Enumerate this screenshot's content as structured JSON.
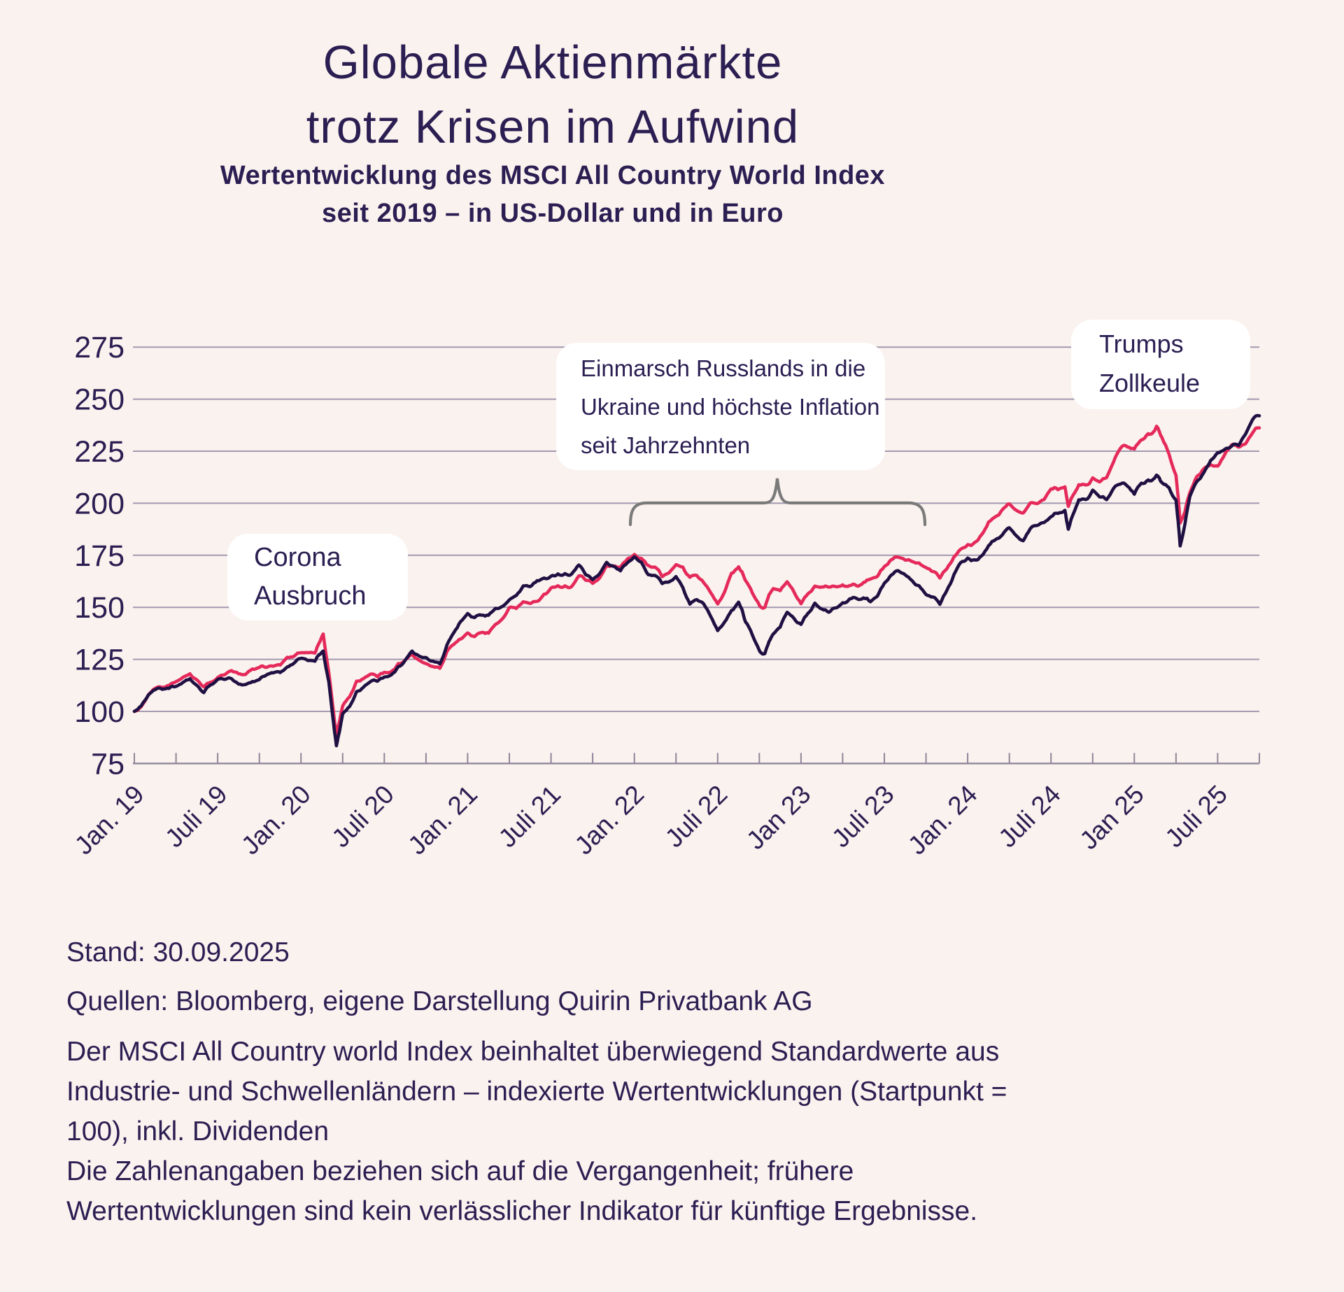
{
  "page": {
    "background_color": "#faf2ee",
    "ink_color": "#2b1e52"
  },
  "title": {
    "line1": "Globale Aktienmärkte",
    "line2": "trotz Krisen im Aufwind"
  },
  "subtitle": {
    "line1": "Wertentwicklung des MSCI All Country World Index",
    "line2": "seit 2019 – in US-Dollar und in Euro"
  },
  "annotations": {
    "corona": {
      "lines": [
        "Corona",
        "Ausbruch"
      ]
    },
    "ukraine": {
      "lines": [
        "Einmarsch Russlands in die",
        "Ukraine und höchste Inflation",
        "seit Jahrzehnten"
      ]
    },
    "trump": {
      "lines": [
        "Trumps",
        "Zollkeule"
      ]
    }
  },
  "footer": {
    "stand": "Stand: 30.09.2025",
    "quellen": "Quellen: Bloomberg, eigene Darstellung Quirin Privatbank AG",
    "note_lines": [
      "Der MSCI All Country world Index beinhaltet überwiegend Standardwerte aus",
      "Industrie- und Schwellenländern – indexierte Wertentwicklungen (Startpunkt =",
      "100), inkl. Dividenden",
      "Die Zahlenangaben beziehen sich auf die Vergangenheit; frühere",
      "Wertentwicklungen sind kein verlässlicher Indikator für künftige Ergebnisse."
    ]
  },
  "chart_data": {
    "type": "line",
    "title": "Wertentwicklung des MSCI All Country World Index seit 2019 – in US-Dollar und in Euro",
    "xlabel": "",
    "ylabel": "indexierte Wertentwicklung (Startpunkt = 100)",
    "x_unit": "Monate seit Januar 2019",
    "x_range_months": [
      0,
      81
    ],
    "x_tick_labels": [
      "Jan. 19",
      "Juli 19",
      "Jan. 20",
      "Juli 20",
      "Jan. 21",
      "Juli 21",
      "Jan. 22",
      "Juli 22",
      "Jan 23",
      "Juli 23",
      "Jan. 24",
      "Juli 24",
      "Jan 25",
      "Juli 25"
    ],
    "x_tick_label_interval_months": 6,
    "x_minor_tick_interval_months": 3,
    "y_ticks": [
      275,
      250,
      225,
      200,
      175,
      150,
      125,
      100,
      75
    ],
    "ylim": [
      75,
      287
    ],
    "grid": true,
    "grid_color": "#a29ab0",
    "axis_color": "#8d8699",
    "brace_color": "#7a7a7a",
    "legend_position": "none",
    "series": [
      {
        "name": "MSCI All Country World Index in Euro",
        "currency": "EUR",
        "color": "#e52a5b",
        "column": 2
      },
      {
        "name": "MSCI All Country World Index in US-Dollar",
        "currency": "USD",
        "color": "#1e1042",
        "column": 1
      }
    ],
    "points_t_usd_eur": [
      [
        0,
        100,
        100
      ],
      [
        1,
        107.8,
        107.9
      ],
      [
        2,
        110.6,
        111.5
      ],
      [
        3,
        112.0,
        114.3
      ],
      [
        4,
        115.7,
        118.1
      ],
      [
        5,
        109.0,
        111.8
      ],
      [
        6,
        115.4,
        116.3
      ],
      [
        7,
        115.7,
        119.6
      ],
      [
        8,
        112.9,
        117.7
      ],
      [
        9,
        115.3,
        121.1
      ],
      [
        10,
        118.5,
        121.7
      ],
      [
        11,
        121.3,
        126.0
      ],
      [
        12,
        125.5,
        128.2
      ],
      [
        13,
        124.1,
        128.0
      ],
      [
        13.6,
        129.0,
        137.2
      ],
      [
        14,
        114.4,
        118.9
      ],
      [
        14.55,
        83.5,
        88.5
      ],
      [
        15,
        98.8,
        102.6
      ],
      [
        16,
        109.5,
        114.5
      ],
      [
        17,
        114.3,
        117.9
      ],
      [
        18,
        116.5,
        118.8
      ],
      [
        19,
        121.5,
        123.0
      ],
      [
        20,
        129.0,
        127.5
      ],
      [
        21,
        125.9,
        123.0
      ],
      [
        22,
        122.8,
        120.7
      ],
      [
        23,
        137.8,
        132.2
      ],
      [
        24,
        147.0,
        137.7
      ],
      [
        25,
        146.2,
        137.9
      ],
      [
        26,
        149.5,
        141.8
      ],
      [
        27,
        153.6,
        149.9
      ],
      [
        28,
        160.3,
        152.7
      ],
      [
        29,
        162.8,
        152.9
      ],
      [
        30,
        165.0,
        159.3
      ],
      [
        31,
        166.2,
        160.3
      ],
      [
        32,
        170.3,
        165.1
      ],
      [
        33,
        163.3,
        161.5
      ],
      [
        34,
        171.6,
        170.0
      ],
      [
        35,
        167.5,
        169.1
      ],
      [
        36,
        174.3,
        175.4
      ],
      [
        37,
        165.7,
        170.1
      ],
      [
        38,
        161.4,
        164.7
      ],
      [
        39,
        164.8,
        170.5
      ],
      [
        40,
        151.5,
        164.4
      ],
      [
        41,
        151.6,
        161.8
      ],
      [
        42,
        138.8,
        151.6
      ],
      [
        43,
        148.5,
        166.4
      ],
      [
        43.5,
        152.5,
        169.5
      ],
      [
        44,
        143.0,
        162.9
      ],
      [
        45,
        129.3,
        151.1
      ],
      [
        45.4,
        127.8,
        150.0
      ],
      [
        46,
        137.2,
        159.0
      ],
      [
        47,
        147.6,
        162.3
      ],
      [
        48,
        141.8,
        151.7
      ],
      [
        49,
        152.0,
        160.2
      ],
      [
        50,
        147.6,
        159.7
      ],
      [
        51,
        152.2,
        160.8
      ],
      [
        52,
        154.3,
        160.3
      ],
      [
        53,
        152.7,
        163.6
      ],
      [
        54,
        161.6,
        169.6
      ],
      [
        55,
        167.6,
        174.1
      ],
      [
        56,
        162.8,
        172.0
      ],
      [
        57,
        156.1,
        169.1
      ],
      [
        58,
        151.4,
        164.0
      ],
      [
        59,
        165.6,
        174.1
      ],
      [
        60,
        173.7,
        180.1
      ],
      [
        61,
        174.7,
        184.9
      ],
      [
        62,
        182.5,
        193.5
      ],
      [
        63,
        188.2,
        199.7
      ],
      [
        64,
        182.0,
        195.3
      ],
      [
        65,
        189.3,
        199.8
      ],
      [
        66,
        193.5,
        206.9
      ],
      [
        67,
        196.6,
        207.9
      ],
      [
        67.25,
        187.5,
        198.5
      ],
      [
        68,
        201.6,
        208.9
      ],
      [
        69,
        206.3,
        212.2
      ],
      [
        70,
        201.7,
        212.3
      ],
      [
        71,
        209.2,
        226.4
      ],
      [
        72,
        204.3,
        226.0
      ],
      [
        73,
        211.2,
        233.4
      ],
      [
        73.6,
        213.5,
        237.0
      ],
      [
        74,
        209.8,
        231.4
      ],
      [
        75,
        201.5,
        213.4
      ],
      [
        75.3,
        179.5,
        190.5
      ],
      [
        76,
        203.3,
        205.1
      ],
      [
        77,
        214.7,
        216.6
      ],
      [
        78,
        224.3,
        217.8
      ],
      [
        79,
        227.4,
        228.0
      ],
      [
        80,
        233.1,
        228.5
      ],
      [
        81,
        242.0,
        236.2
      ]
    ],
    "event_annotations": [
      {
        "label": "Corona Ausbruch",
        "t_months": 14.5
      },
      {
        "label": "Einmarsch Russlands in die Ukraine und höchste Inflation seit Jahrzehnten",
        "t_months_range": [
          35.7,
          56.9
        ]
      },
      {
        "label": "Trumps Zollkeule",
        "t_months": 75.3
      }
    ]
  }
}
